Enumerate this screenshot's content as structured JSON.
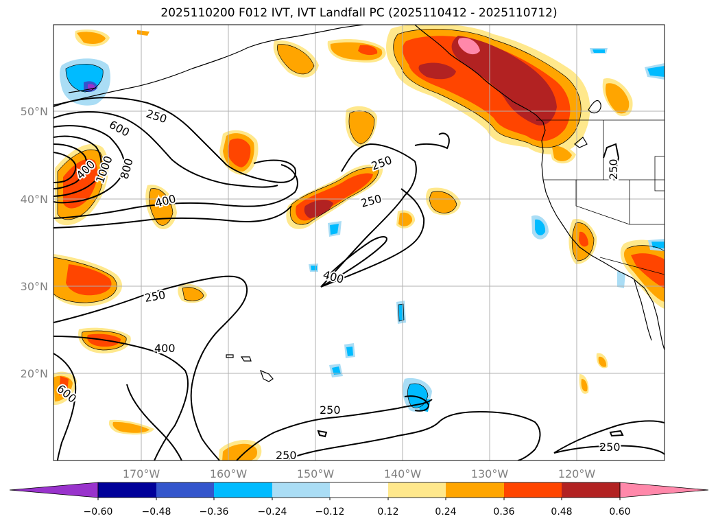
{
  "title": "2025110200 F012 IVT, IVT Landfall PC (2025110412 - 2025110712)",
  "lon_ticks": [
    "170°W",
    "160°W",
    "150°W",
    "140°W",
    "130°W",
    "120°W"
  ],
  "lat_ticks": [
    "50°N",
    "40°N",
    "30°N",
    "20°N"
  ],
  "contour_labels": [
    "250",
    "600",
    "400",
    "400",
    "800",
    "1000",
    "250",
    "250",
    "400",
    "250",
    "400",
    "600",
    "250",
    "250",
    "250",
    "250"
  ],
  "colorbar": {
    "tick_labels": [
      "−0.60",
      "−0.48",
      "−0.36",
      "−0.24",
      "−0.12",
      "0.12",
      "0.24",
      "0.36",
      "0.48",
      "0.60"
    ],
    "colors": [
      "#9933cc",
      "#000099",
      "#3355cc",
      "#00bbff",
      "#aaddf5",
      "#ffffff",
      "#ffe88c",
      "#ffa500",
      "#ff4500",
      "#b22222",
      "#ff88aa"
    ]
  }
}
